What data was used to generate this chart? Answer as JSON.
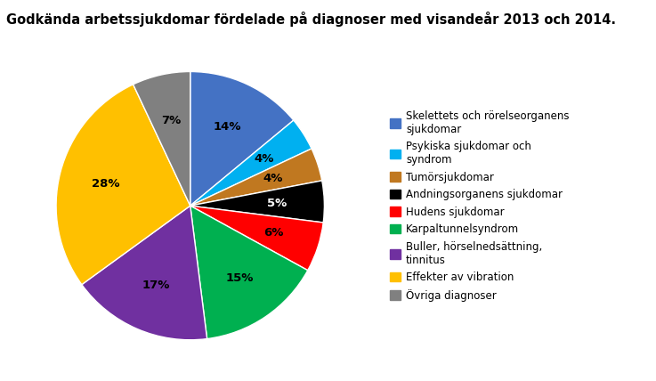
{
  "title": "Godkända arbetssjukdomar fördelade på diagnoser med visandeår 2013 och 2014.",
  "slices": [
    14,
    4,
    4,
    5,
    6,
    15,
    17,
    28,
    7
  ],
  "colors": [
    "#4472C4",
    "#00B0F0",
    "#C07820",
    "#000000",
    "#FF0000",
    "#00B050",
    "#7030A0",
    "#FFC000",
    "#808080"
  ],
  "labels": [
    "Skelettets och rörelseorganens\nsjukdomar",
    "Psykiska sjukdomar och\nsyndrom",
    "Tumörsjukdomar",
    "Andningsorganens sjukdomar",
    "Hudens sjukdomar",
    "Karpaltunnelsyndrom",
    "Buller, hörselnedsättning,\ntinnitus",
    "Effekter av vibration",
    "Övriga diagnoser"
  ],
  "pct_labels": [
    "14%",
    "4%",
    "4%",
    "5%",
    "6%",
    "15%",
    "17%",
    "28%",
    "7%"
  ],
  "pct_colors": [
    "#000000",
    "#000000",
    "#000000",
    "#ffffff",
    "#000000",
    "#000000",
    "#000000",
    "#000000",
    "#000000"
  ],
  "background_color": "#ffffff",
  "title_fontsize": 10.5,
  "legend_fontsize": 8.5,
  "pct_fontsize": 9.5
}
